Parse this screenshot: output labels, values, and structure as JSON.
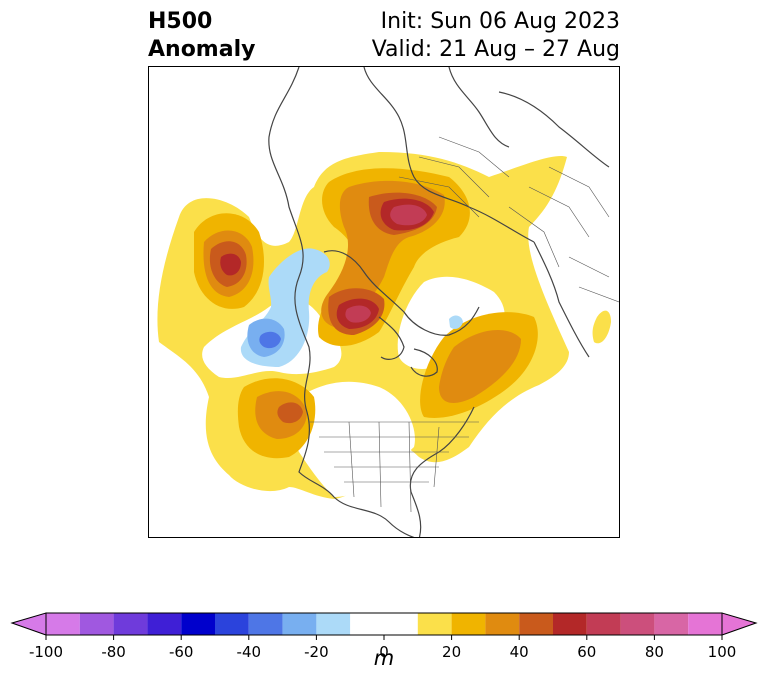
{
  "header": {
    "title_line1": "H500",
    "title_line2": "Anomaly",
    "init_text": "Init: Sun 06 Aug 2023",
    "valid_text": "Valid: 21 Aug – 27 Aug"
  },
  "colorbar": {
    "unit_label": "m",
    "tick_labels": [
      "-100",
      "-80",
      "-60",
      "-40",
      "-20",
      "0",
      "20",
      "40",
      "60",
      "80",
      "100"
    ],
    "bins": [
      {
        "range": "-100 to -90",
        "color": "#d67ae8"
      },
      {
        "range": "-90 to -80",
        "color": "#a058e0"
      },
      {
        "range": "-80 to -70",
        "color": "#6f3bdb"
      },
      {
        "range": "-70 to -60",
        "color": "#3f1fd6"
      },
      {
        "range": "-60 to -50",
        "color": "#0000cc"
      },
      {
        "range": "-50 to -40",
        "color": "#2b43dc"
      },
      {
        "range": "-40 to -30",
        "color": "#4e76e6"
      },
      {
        "range": "-30 to -20",
        "color": "#78aff0"
      },
      {
        "range": "-20 to -10",
        "color": "#acdaf8"
      },
      {
        "range": "-10 to 10",
        "color": "#ffffff"
      },
      {
        "range": "10 to 20",
        "color": "#fbe04a"
      },
      {
        "range": "20 to 30",
        "color": "#f0b400"
      },
      {
        "range": "30 to 40",
        "color": "#e08b10"
      },
      {
        "range": "40 to 50",
        "color": "#c95a1c"
      },
      {
        "range": "50 to 60",
        "color": "#b32828"
      },
      {
        "range": "60 to 70",
        "color": "#c23c55"
      },
      {
        "range": "70 to 80",
        "color": "#cc4f7c"
      },
      {
        "range": "80 to 90",
        "color": "#d866a5"
      },
      {
        "range": "90 to 100",
        "color": "#e574d6"
      }
    ],
    "extend_low_color": "#d67ae8",
    "extend_high_color": "#e574d6"
  }
}
